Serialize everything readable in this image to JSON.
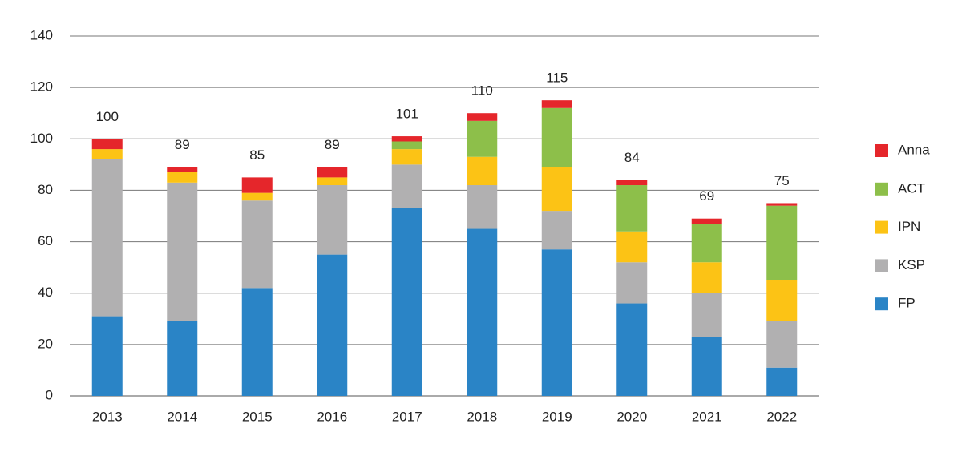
{
  "chart_data": {
    "type": "stacked_bar",
    "categories": [
      "2013",
      "2014",
      "2015",
      "2016",
      "2017",
      "2018",
      "2019",
      "2020",
      "2021",
      "2022"
    ],
    "series": [
      {
        "name": "FP",
        "color": "#2a84c6",
        "values": [
          31,
          29,
          42,
          55,
          73,
          65,
          57,
          36,
          23,
          11
        ]
      },
      {
        "name": "KSP",
        "color": "#b1b0b1",
        "values": [
          61,
          54,
          34,
          27,
          17,
          17,
          15,
          16,
          17,
          18
        ]
      },
      {
        "name": "IPN",
        "color": "#fcc315",
        "values": [
          4,
          4,
          3,
          3,
          6,
          11,
          17,
          12,
          12,
          16
        ]
      },
      {
        "name": "ACT",
        "color": "#8dbf4a",
        "values": [
          0,
          0,
          0,
          0,
          3,
          14,
          23,
          18,
          15,
          29
        ]
      },
      {
        "name": "Anna",
        "color": "#e5262b",
        "values": [
          4,
          2,
          6,
          4,
          2,
          3,
          3,
          2,
          2,
          1
        ]
      }
    ],
    "totals": [
      100,
      89,
      85,
      89,
      101,
      110,
      115,
      84,
      69,
      75
    ],
    "ylim": [
      0,
      140
    ],
    "yticks": [
      0,
      20,
      40,
      60,
      80,
      100,
      120,
      140
    ],
    "grid": true,
    "legend": "right"
  }
}
